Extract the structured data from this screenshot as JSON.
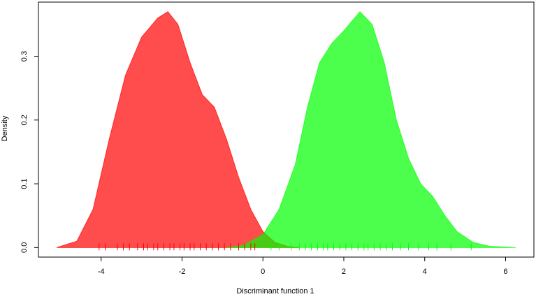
{
  "chart_data": {
    "type": "density",
    "xlabel": "Discriminant function 1",
    "ylabel": "Density",
    "xlim": [
      -5.55,
      6.7
    ],
    "ylim": [
      -0.015,
      0.385
    ],
    "xticks": [
      -4,
      -2,
      0,
      2,
      4,
      6
    ],
    "yticks": [
      {
        "value": 0,
        "label": "0.0"
      },
      0.1,
      0.2,
      0.3
    ],
    "alpha": 0.7,
    "series": [
      {
        "color": "#ff0000",
        "x": [
          -5.1,
          -4.6,
          -4.2,
          -3.8,
          -3.4,
          -3.0,
          -2.6,
          -2.35,
          -2.1,
          -1.8,
          -1.5,
          -1.2,
          -0.9,
          -0.6,
          -0.3,
          0,
          0.3,
          0.6,
          0.9
        ],
        "values": [
          0,
          0.01,
          0.06,
          0.17,
          0.27,
          0.33,
          0.36,
          0.37,
          0.35,
          0.29,
          0.24,
          0.22,
          0.17,
          0.11,
          0.06,
          0.025,
          0.008,
          0.002,
          0
        ],
        "rug": [
          -4.05,
          -3.9,
          -3.6,
          -3.45,
          -3.3,
          -3.1,
          -2.95,
          -2.85,
          -2.7,
          -2.6,
          -2.45,
          -2.3,
          -2.2,
          -2.05,
          -1.95,
          -1.8,
          -1.7,
          -1.55,
          -1.4,
          -1.25,
          -1.1,
          -0.95,
          -0.8,
          -0.6,
          -0.45,
          -0.3,
          -0.2
        ]
      },
      {
        "color": "#00ff00",
        "x": [
          -0.9,
          -0.5,
          0,
          0.4,
          0.8,
          1.1,
          1.4,
          1.7,
          2.0,
          2.4,
          2.7,
          3.0,
          3.3,
          3.6,
          3.9,
          4.2,
          4.5,
          4.8,
          5.2,
          5.6,
          6.25
        ],
        "values": [
          0,
          0.003,
          0.02,
          0.06,
          0.13,
          0.22,
          0.29,
          0.32,
          0.34,
          0.37,
          0.35,
          0.29,
          0.2,
          0.14,
          0.1,
          0.08,
          0.05,
          0.025,
          0.008,
          0.002,
          0
        ],
        "rug": [
          0.2,
          0.4,
          0.7,
          0.9,
          1.05,
          1.2,
          1.35,
          1.5,
          1.6,
          1.75,
          1.9,
          2.05,
          2.2,
          2.35,
          2.5,
          2.6,
          2.75,
          2.9,
          3.05,
          3.2,
          3.4,
          3.6,
          3.85,
          4.1,
          4.3,
          4.65,
          5.15
        ]
      }
    ]
  }
}
